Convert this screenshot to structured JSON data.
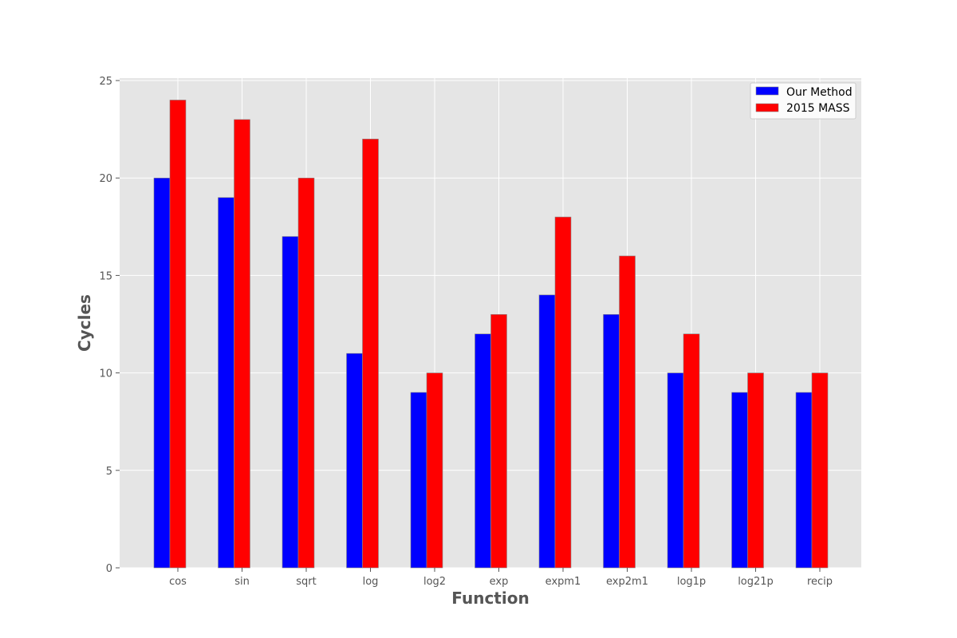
{
  "chart_data": {
    "type": "bar",
    "categories": [
      "cos",
      "sin",
      "sqrt",
      "log",
      "log2",
      "exp",
      "expm1",
      "exp2m1",
      "log1p",
      "log21p",
      "recip"
    ],
    "series": [
      {
        "name": "Our Method",
        "color": "#0000ff",
        "values": [
          20,
          19,
          17,
          11,
          9,
          12,
          14,
          13,
          10,
          9,
          9
        ]
      },
      {
        "name": "2015 MASS",
        "color": "#ff0000",
        "values": [
          24,
          23,
          20,
          22,
          10,
          13,
          18,
          16,
          12,
          10,
          10
        ]
      }
    ],
    "xlabel": "Function",
    "ylabel": "Cycles",
    "ylim": [
      0,
      25
    ],
    "yticks": [
      0,
      5,
      10,
      15,
      20,
      25
    ],
    "grid": true,
    "legend_position": "top-right",
    "background_color": "#e5e5e5"
  }
}
